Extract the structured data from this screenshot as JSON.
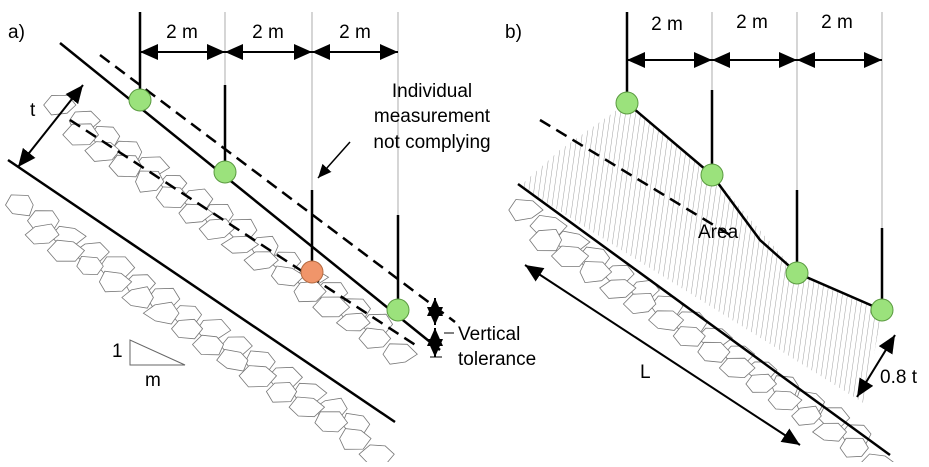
{
  "panels": [
    {
      "label": "a)",
      "spacings": [
        "2 m",
        "2 m",
        "2 m"
      ],
      "thickness": "t",
      "annotation": [
        "Individual",
        "measurement",
        "not complying"
      ],
      "tolerance": [
        "Vertical",
        "tolerance"
      ],
      "slope": {
        "rise": "1",
        "run": "m"
      }
    },
    {
      "label": "b)",
      "spacings": [
        "2 m",
        "2 m",
        "2 m"
      ],
      "area": "Area",
      "length": "L",
      "thickness": "0.8 t"
    }
  ]
}
